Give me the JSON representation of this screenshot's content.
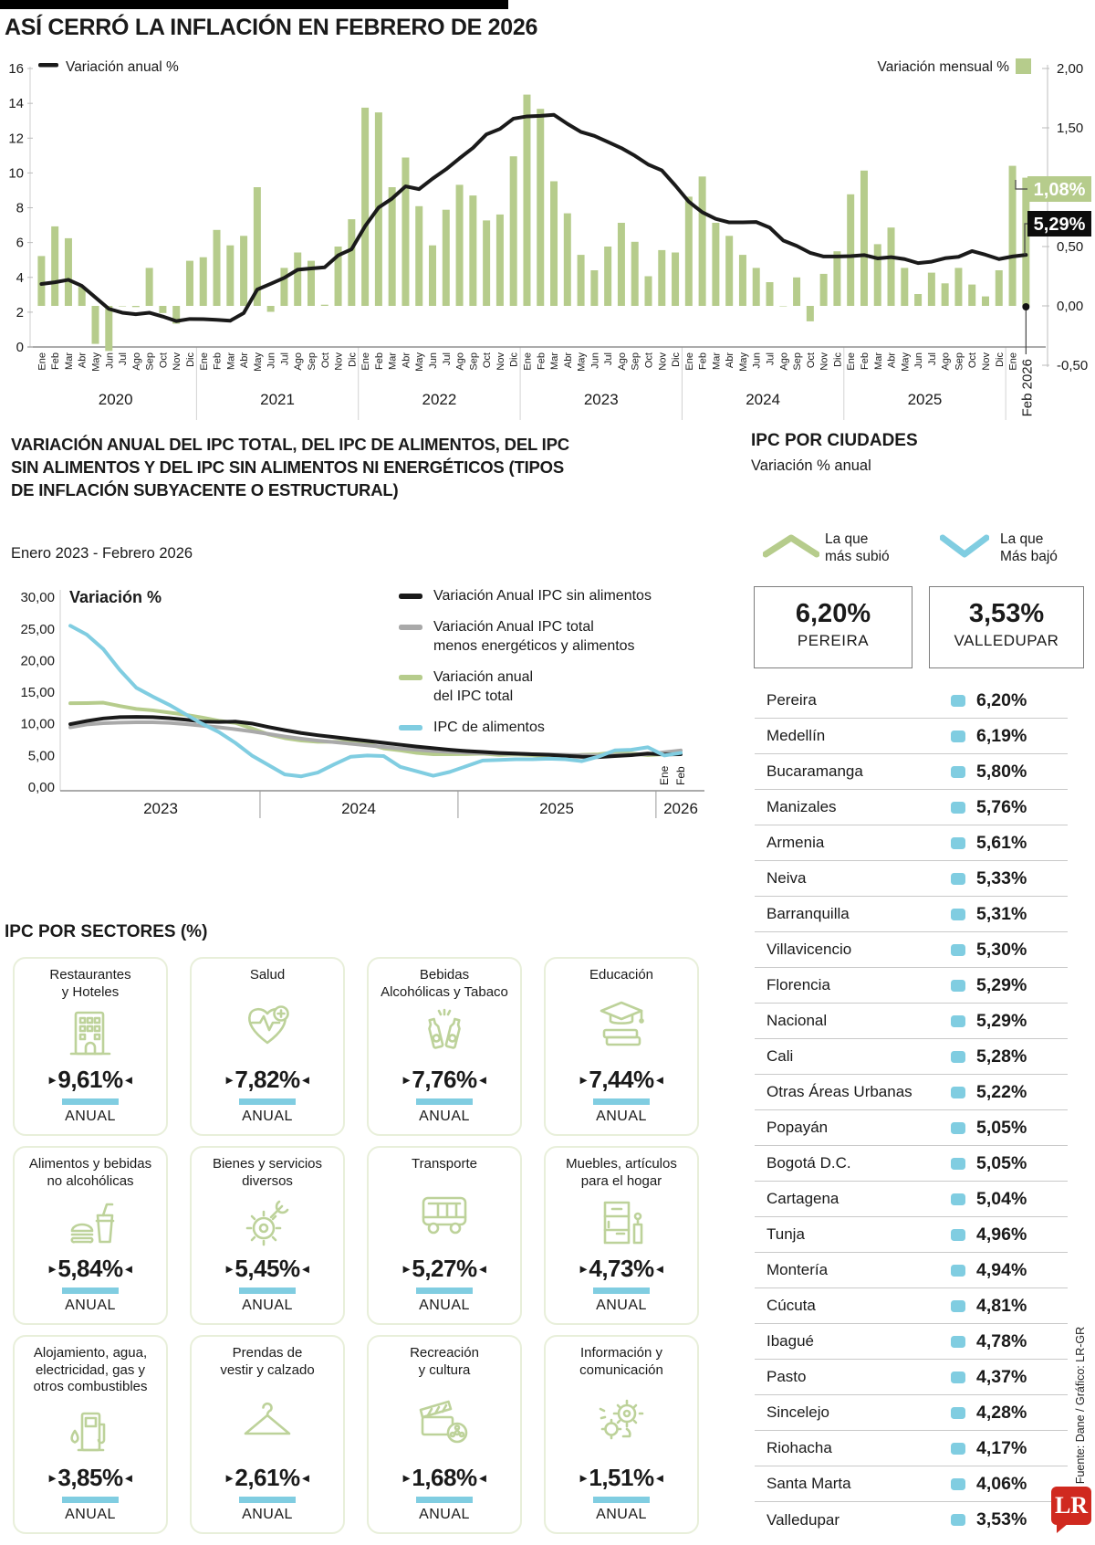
{
  "header": {
    "title": "ASÍ CERRÓ LA INFLACIÓN EN FEBRERO DE 2026"
  },
  "colors": {
    "green": "#b6cc8c",
    "icon_green": "#bdd29a",
    "blue": "#80cde1",
    "gray": "#a9a9a9",
    "black": "#1a1a1a",
    "red": "#d0291f",
    "card_border": "#e8efda"
  },
  "chart_data": [
    {
      "type": "bar+line",
      "line_legend": "Variación anual %",
      "bar_legend": "Variación mensual %",
      "left_axis": {
        "ticks": [
          16,
          14,
          12,
          10,
          8,
          6,
          4,
          2,
          0
        ],
        "min": 0,
        "max": 16
      },
      "right_axis": {
        "tick_labels": [
          "2,00",
          "1,50",
          "1,00",
          "0,50",
          "0,00",
          "-0,50"
        ],
        "tick_values": [
          2.0,
          1.5,
          1.0,
          0.5,
          0.0,
          -0.5
        ],
        "min": -0.5,
        "max": 2.0
      },
      "month_names": [
        "Ene",
        "Feb",
        "Mar",
        "Abr",
        "May",
        "Jun",
        "Jul",
        "Ago",
        "Sep",
        "Oct",
        "Nov",
        "Dic"
      ],
      "years": [
        "2020",
        "2021",
        "2022",
        "2023",
        "2024",
        "2025"
      ],
      "final_month_label": "Feb 2026",
      "annual": [
        3.62,
        3.72,
        3.86,
        3.51,
        2.85,
        2.19,
        1.97,
        1.88,
        1.97,
        1.75,
        1.49,
        1.61,
        1.6,
        1.56,
        1.51,
        1.95,
        3.3,
        3.63,
        3.97,
        4.44,
        4.51,
        4.58,
        5.26,
        5.62,
        6.94,
        8.01,
        8.53,
        9.23,
        9.07,
        9.67,
        10.21,
        10.84,
        11.44,
        12.22,
        12.53,
        13.12,
        13.25,
        13.28,
        13.34,
        12.82,
        12.36,
        12.13,
        11.78,
        11.43,
        10.99,
        10.48,
        10.15,
        9.28,
        8.35,
        7.74,
        7.36,
        7.16,
        7.16,
        7.18,
        6.86,
        6.12,
        5.81,
        5.41,
        5.2,
        5.2,
        5.22,
        5.28,
        5.09,
        5.16,
        5.05,
        4.82,
        4.9,
        5.1,
        5.18,
        5.51,
        5.3,
        5.05,
        5.2,
        5.29
      ],
      "monthly": [
        0.42,
        0.67,
        0.57,
        0.16,
        -0.32,
        -0.38,
        0.0,
        -0.01,
        0.32,
        -0.06,
        -0.15,
        0.38,
        0.41,
        0.64,
        0.51,
        0.59,
        1.0,
        -0.05,
        0.32,
        0.45,
        0.38,
        0.01,
        0.5,
        0.73,
        1.67,
        1.63,
        1.0,
        1.25,
        0.84,
        0.51,
        0.81,
        1.02,
        0.93,
        0.72,
        0.77,
        1.26,
        1.78,
        1.66,
        1.05,
        0.78,
        0.43,
        0.3,
        0.5,
        0.7,
        0.54,
        0.25,
        0.47,
        0.45,
        0.92,
        1.09,
        0.7,
        0.59,
        0.43,
        0.32,
        0.2,
        0.0,
        0.24,
        -0.13,
        0.27,
        0.46,
        0.94,
        1.14,
        0.52,
        0.66,
        0.32,
        0.1,
        0.28,
        0.19,
        0.32,
        0.18,
        0.08,
        0.3,
        1.18,
        1.08
      ],
      "callout_monthly": "1,08%",
      "callout_annual": "5,29%"
    },
    {
      "type": "line",
      "title_lines": [
        "VARIACIÓN ANUAL DEL IPC TOTAL, DEL IPC DE ALIMENTOS, DEL IPC",
        "SIN ALIMENTOS Y DEL IPC SIN ALIMENTOS NI ENERGÉTICOS (TIPOS",
        "DE INFLACIÓN SUBYACENTE O ESTRUCTURAL)"
      ],
      "subtitle": "Enero 2023 - Febrero 2026",
      "ylabel": "Variación %",
      "y_tick_labels": [
        "30,00",
        "25,00",
        "20,00",
        "15,00",
        "10,00",
        "5,00",
        "0,00"
      ],
      "y_tick_values": [
        30,
        25,
        20,
        15,
        10,
        5,
        0
      ],
      "years": [
        "2023",
        "2024",
        "2025",
        "2026"
      ],
      "end_month_labels": [
        "Ene",
        "Feb"
      ],
      "series": [
        {
          "name": "Variación Anual IPC sin alimentos",
          "legend_lines": [
            "Variación Anual IPC sin alimentos"
          ],
          "color": "#1a1a1a",
          "values": [
            9.95,
            10.45,
            10.85,
            11.05,
            11.1,
            11.05,
            10.9,
            10.65,
            10.35,
            10.3,
            10.35,
            10.05,
            9.5,
            9.0,
            8.55,
            8.2,
            7.9,
            7.6,
            7.3,
            7.0,
            6.7,
            6.4,
            6.15,
            5.9,
            5.7,
            5.55,
            5.4,
            5.3,
            5.2,
            5.1,
            4.95,
            4.8,
            4.75,
            4.9,
            5.05,
            5.3,
            5.15,
            5.2
          ]
        },
        {
          "name": "Variación Anual IPC total menos energéticos y alimentos",
          "legend_lines": [
            "Variación Anual IPC total",
            "menos energéticos y alimentos"
          ],
          "color": "#a9a9a9",
          "values": [
            9.45,
            9.9,
            10.1,
            10.2,
            10.25,
            10.25,
            10.15,
            9.95,
            9.7,
            9.45,
            9.15,
            8.8,
            8.4,
            8.0,
            7.65,
            7.35,
            7.1,
            6.85,
            6.6,
            6.35,
            6.1,
            5.9,
            5.7,
            5.55,
            5.45,
            5.35,
            5.3,
            5.25,
            5.2,
            5.15,
            5.1,
            5.05,
            5.0,
            5.05,
            5.1,
            5.2,
            5.5,
            5.8
          ]
        },
        {
          "name": "Variación anual del IPC total",
          "legend_lines": [
            "Variación anual",
            "del IPC total"
          ],
          "color": "#b6cc8c",
          "values": [
            13.25,
            13.28,
            13.34,
            12.82,
            12.36,
            12.13,
            11.78,
            11.43,
            10.99,
            10.48,
            10.15,
            9.28,
            8.35,
            7.74,
            7.36,
            7.16,
            7.16,
            7.18,
            6.86,
            6.12,
            5.81,
            5.41,
            5.2,
            5.2,
            5.22,
            5.28,
            5.09,
            5.16,
            5.05,
            4.82,
            4.9,
            5.1,
            5.18,
            5.51,
            5.3,
            5.05,
            5.2,
            5.29
          ]
        },
        {
          "name": "IPC de alimentos",
          "legend_lines": [
            "IPC de alimentos"
          ],
          "color": "#80cde1",
          "values": [
            25.5,
            24.1,
            21.8,
            18.5,
            15.7,
            14.3,
            13.0,
            11.5,
            10.0,
            8.7,
            7.0,
            5.0,
            3.5,
            2.0,
            1.7,
            2.3,
            3.6,
            4.8,
            5.0,
            4.9,
            3.2,
            2.5,
            1.8,
            2.4,
            3.3,
            4.2,
            4.3,
            4.4,
            4.4,
            4.5,
            4.4,
            4.1,
            4.8,
            5.8,
            5.9,
            6.3,
            5.0,
            5.4
          ]
        }
      ]
    }
  ],
  "cities": {
    "title": "IPC POR CIUDADES",
    "subtitle": "Variación % anual",
    "up_label_lines": [
      "La que",
      "más subió"
    ],
    "down_label_lines": [
      "La que",
      "Más bajó"
    ],
    "highest": {
      "value": "6,20%",
      "city": "PEREIRA"
    },
    "lowest": {
      "value": "3,53%",
      "city": "VALLEDUPAR"
    },
    "rows": [
      {
        "name": "Pereira",
        "value": "6,20%"
      },
      {
        "name": "Medellín",
        "value": "6,19%"
      },
      {
        "name": "Bucaramanga",
        "value": "5,80%"
      },
      {
        "name": "Manizales",
        "value": "5,76%"
      },
      {
        "name": "Armenia",
        "value": "5,61%"
      },
      {
        "name": "Neiva",
        "value": "5,33%"
      },
      {
        "name": "Barranquilla",
        "value": "5,31%"
      },
      {
        "name": "Villavicencio",
        "value": "5,30%"
      },
      {
        "name": "Florencia",
        "value": "5,29%"
      },
      {
        "name": "Nacional",
        "value": "5,29%"
      },
      {
        "name": "Cali",
        "value": "5,28%"
      },
      {
        "name": "Otras Áreas Urbanas",
        "value": "5,22%"
      },
      {
        "name": "Popayán",
        "value": "5,05%"
      },
      {
        "name": "Bogotá D.C.",
        "value": "5,05%"
      },
      {
        "name": "Cartagena",
        "value": "5,04%"
      },
      {
        "name": "Tunja",
        "value": "4,96%"
      },
      {
        "name": "Montería",
        "value": "4,94%"
      },
      {
        "name": "Cúcuta",
        "value": "4,81%"
      },
      {
        "name": "Ibagué",
        "value": "4,78%"
      },
      {
        "name": "Pasto",
        "value": "4,37%"
      },
      {
        "name": "Sincelejo",
        "value": "4,28%"
      },
      {
        "name": "Riohacha",
        "value": "4,17%"
      },
      {
        "name": "Santa Marta",
        "value": "4,06%"
      },
      {
        "name": "Valledupar",
        "value": "3,53%"
      }
    ]
  },
  "sectors": {
    "title": "IPC POR SECTORES (%)",
    "period_label": "ANUAL",
    "cards": [
      {
        "title_lines": [
          "Restaurantes",
          "y Hoteles"
        ],
        "value": "9,61%",
        "icon": "building"
      },
      {
        "title_lines": [
          "Salud"
        ],
        "value": "7,82%",
        "icon": "health-heart"
      },
      {
        "title_lines": [
          "Bebidas",
          "Alcohólicas y Tabaco"
        ],
        "value": "7,76%",
        "icon": "bottles"
      },
      {
        "title_lines": [
          "Educación"
        ],
        "value": "7,44%",
        "icon": "graduation"
      },
      {
        "title_lines": [
          "Alimentos y bebidas",
          "no alcohólicas"
        ],
        "value": "5,84%",
        "icon": "fast-food"
      },
      {
        "title_lines": [
          "Bienes y servicios",
          "diversos"
        ],
        "value": "5,45%",
        "icon": "gear-wrench"
      },
      {
        "title_lines": [
          "Transporte"
        ],
        "value": "5,27%",
        "icon": "bus"
      },
      {
        "title_lines": [
          "Muebles, artículos",
          "para el hogar"
        ],
        "value": "4,73%",
        "icon": "furniture"
      },
      {
        "title_lines": [
          "Alojamiento, agua,",
          "electricidad, gas y",
          "otros combustibles"
        ],
        "value": "3,85%",
        "icon": "fuel-pump"
      },
      {
        "title_lines": [
          "Prendas de",
          "vestir y calzado"
        ],
        "value": "2,61%",
        "icon": "hanger"
      },
      {
        "title_lines": [
          "Recreación",
          "y cultura"
        ],
        "value": "1,68%",
        "icon": "clapperboard"
      },
      {
        "title_lines": [
          "Información y",
          "comunicación"
        ],
        "value": "1,51%",
        "icon": "gears-idea"
      }
    ]
  },
  "footer": {
    "source": "Fuente: Dane / Gráfico: LR-GR",
    "logo": "LR"
  }
}
